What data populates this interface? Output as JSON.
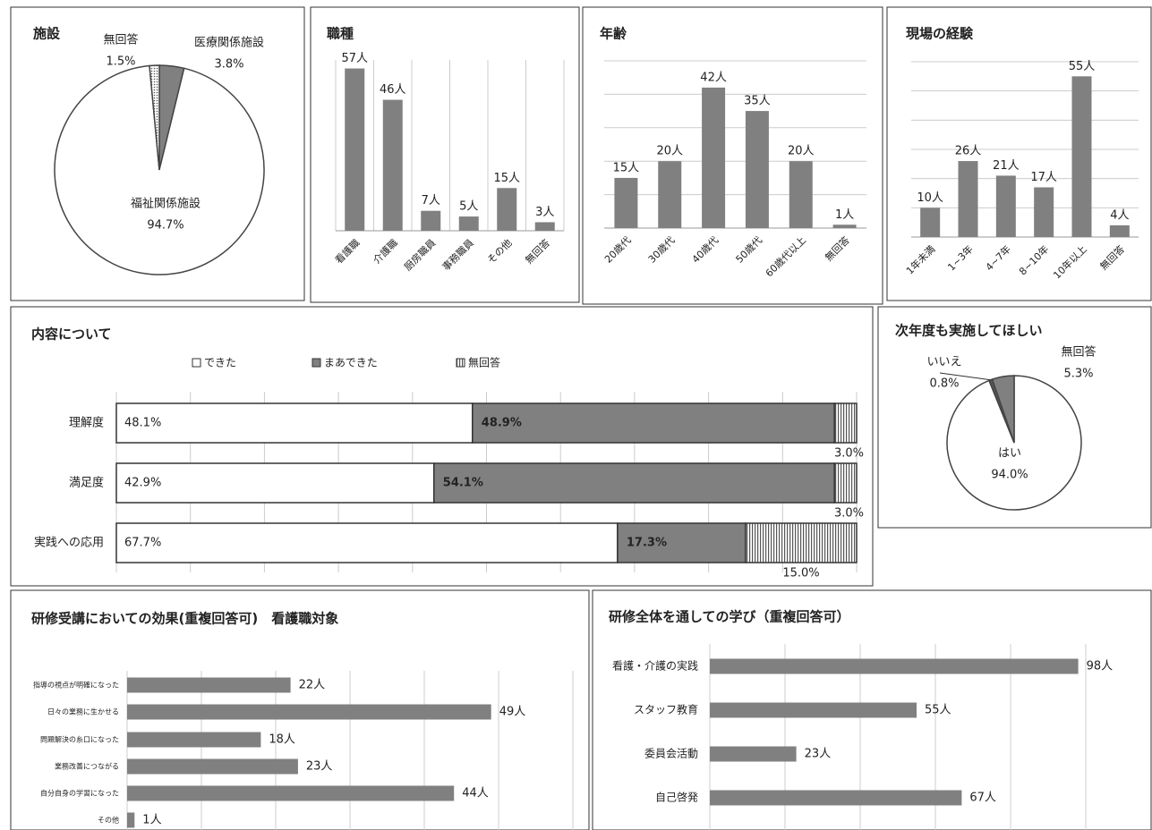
{
  "chart_data": [
    {
      "type": "pie",
      "title": "施設",
      "categories": [
        "医療関係施設",
        "福祉関係施設",
        "無回答"
      ],
      "values": [
        3.8,
        94.7,
        1.5
      ],
      "value_labels": [
        "3.8%",
        "94.7%",
        "1.5%"
      ],
      "fills": [
        "#808080",
        "#ffffff",
        "dots"
      ]
    },
    {
      "type": "bar",
      "title": "職種",
      "categories": [
        "看護職",
        "介護職",
        "厨房職員",
        "事務職員",
        "その他",
        "無回答"
      ],
      "values": [
        57,
        46,
        7,
        5,
        15,
        3
      ],
      "value_labels": [
        "57人",
        "46人",
        "7人",
        "5人",
        "15人",
        "3人"
      ],
      "color": "#808080",
      "ylim": [
        0,
        60
      ],
      "grid": "x"
    },
    {
      "type": "bar",
      "title": "年齢",
      "categories": [
        "20歳代",
        "30歳代",
        "40歳代",
        "50歳代",
        "60歳代以上",
        "無回答"
      ],
      "values": [
        15,
        20,
        42,
        35,
        20,
        1
      ],
      "value_labels": [
        "15人",
        "20人",
        "42人",
        "35人",
        "20人",
        "1人"
      ],
      "color": "#808080",
      "ylim": [
        0,
        50
      ],
      "yticks": [
        0,
        10,
        20,
        30,
        40,
        50
      ],
      "grid": "y"
    },
    {
      "type": "bar",
      "title": "現場の経験",
      "categories": [
        "1年未満",
        "1~3年",
        "4~7年",
        "8~10年",
        "10年以上",
        "無回答"
      ],
      "values": [
        10,
        26,
        21,
        17,
        55,
        4
      ],
      "value_labels": [
        "10人",
        "26人",
        "21人",
        "17人",
        "55人",
        "4人"
      ],
      "color": "#808080",
      "ylim": [
        0,
        60
      ],
      "yticks": [
        0,
        10,
        20,
        30,
        40,
        50,
        60
      ],
      "grid": "y"
    },
    {
      "type": "stackedbar",
      "title": "内容について",
      "categories": [
        "理解度",
        "満足度",
        "実践への応用"
      ],
      "series": [
        {
          "name": "できた",
          "color": "#ffffff",
          "values": [
            48.1,
            42.9,
            67.7
          ],
          "value_labels": [
            "48.1%",
            "42.9%",
            "67.7%"
          ]
        },
        {
          "name": "まあできた",
          "color": "#808080",
          "values": [
            48.9,
            54.1,
            17.3
          ],
          "value_labels": [
            "48.9%",
            "54.1%",
            "17.3%"
          ]
        },
        {
          "name": "無回答",
          "color": "stripes",
          "values": [
            3.0,
            3.0,
            15.0
          ],
          "value_labels": [
            "3.0%",
            "3.0%",
            "15.0%"
          ]
        }
      ],
      "xlim": [
        0,
        100
      ],
      "xticks": [
        0,
        10,
        20,
        30,
        40,
        50,
        60,
        70,
        80,
        90,
        100
      ],
      "grid": true
    },
    {
      "type": "pie",
      "title": "次年度も実施してほしい",
      "categories": [
        "はい",
        "いいえ",
        "無回答"
      ],
      "values": [
        94.0,
        0.8,
        5.3
      ],
      "value_labels": [
        "94.0%",
        "0.8%",
        "5.3%"
      ],
      "fills": [
        "#ffffff",
        "#555555",
        "#808080"
      ]
    },
    {
      "type": "barh",
      "title": "研修受講においての効果(重複回答可)　看護職対象",
      "categories": [
        "指導の視点が明確になった",
        "日々の業務に生かせる",
        "問題解決の糸口になった",
        "業務改善につながる",
        "自分自身の学習になった",
        "その他"
      ],
      "values": [
        22,
        49,
        18,
        23,
        44,
        1
      ],
      "value_labels": [
        "22人",
        "49人",
        "18人",
        "23人",
        "44人",
        "1人"
      ],
      "color": "#808080",
      "xlim": [
        0,
        60
      ],
      "xticks": [
        0,
        10,
        20,
        30,
        40,
        50,
        60
      ],
      "grid": true
    },
    {
      "type": "barh",
      "title": "研修全体を通しての学び（重複回答可）",
      "categories": [
        "看護・介護の実践",
        "スタッフ教育",
        "委員会活動",
        "自己啓発"
      ],
      "values": [
        98,
        55,
        23,
        67
      ],
      "value_labels": [
        "98人",
        "55人",
        "23人",
        "67人"
      ],
      "color": "#808080",
      "xlim": [
        0,
        100
      ],
      "xticks": [
        0,
        20,
        40,
        60,
        80,
        100
      ],
      "grid": true
    }
  ]
}
